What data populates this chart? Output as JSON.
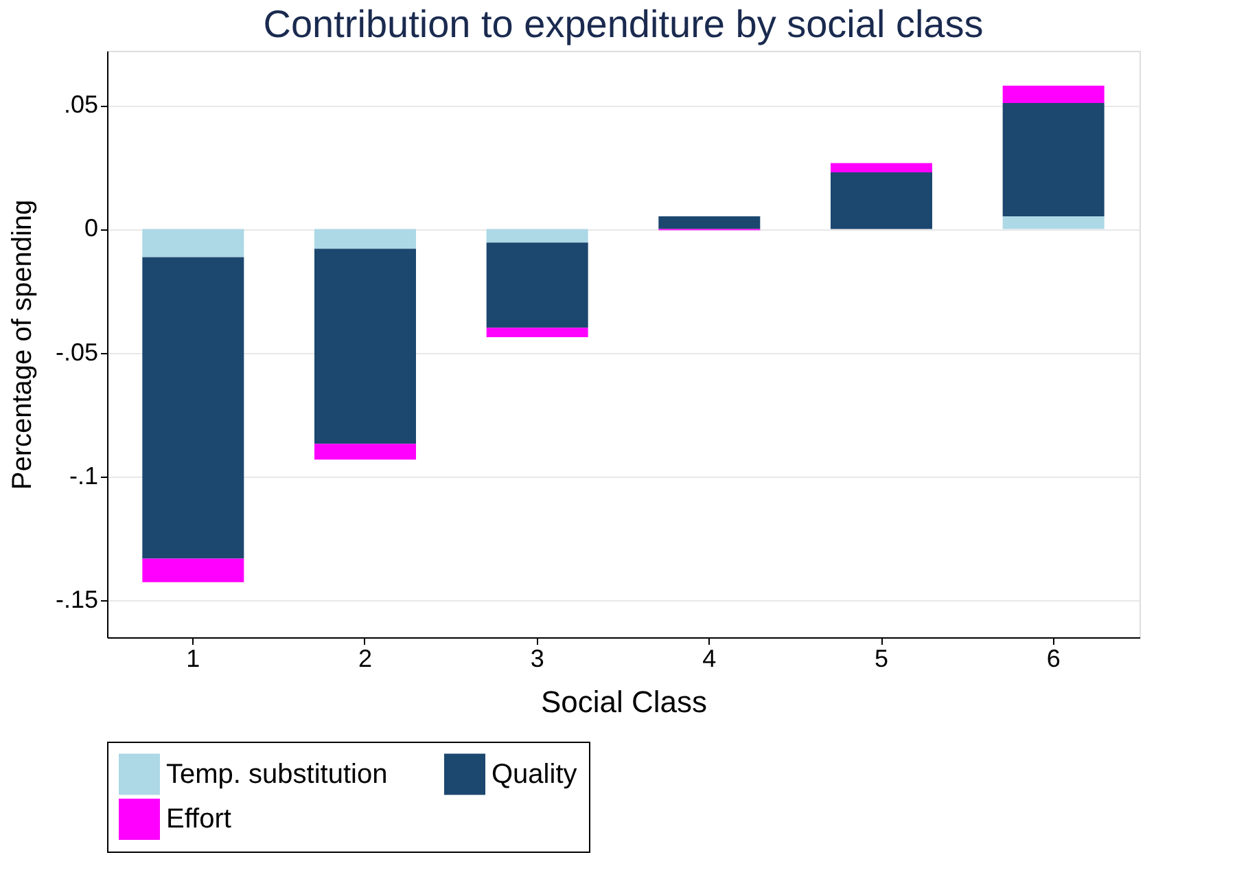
{
  "chart_data": {
    "type": "bar",
    "stacked": true,
    "title": "Contribution to expenditure by social class",
    "xlabel": "Social Class",
    "ylabel": "Percentage of spending",
    "categories": [
      "1",
      "2",
      "3",
      "4",
      "5",
      "6"
    ],
    "series": [
      {
        "name": "Temp. substitution",
        "color": "#add8e6",
        "values": [
          -0.0114,
          -0.008,
          -0.0055,
          0,
          null,
          0.0051
        ]
      },
      {
        "name": "Quality",
        "color": "#1c476f",
        "values": [
          -0.1218,
          -0.0788,
          -0.0344,
          0.0051,
          0.0229,
          0.0458
        ]
      },
      {
        "name": "Effort",
        "color": "#ff00ff",
        "values": [
          -0.0095,
          -0.0064,
          -0.0038,
          -0.0005,
          0.0037,
          0.007
        ]
      }
    ],
    "ylim": [
      -0.165,
      0.072
    ],
    "yticks": [
      {
        "value": 0.05,
        "label": ".05"
      },
      0,
      {
        "value": -0.05,
        "label": "-.05"
      },
      {
        "value": -0.1,
        "label": "-.1"
      },
      {
        "value": -0.15,
        "label": "-.15"
      }
    ],
    "grid": "y",
    "legend": "bottom"
  }
}
